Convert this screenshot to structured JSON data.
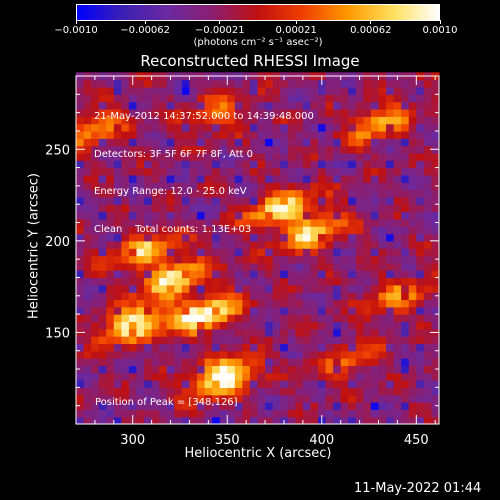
{
  "colorbar": {
    "ticks": [
      "−0.0010",
      "−0.00062",
      "−0.00021",
      "0.00021",
      "0.00062",
      "0.0010"
    ],
    "tick_values": [
      -0.001,
      -0.00062,
      -0.00021,
      0.00021,
      0.00062,
      0.001
    ],
    "unit": "(photons cm⁻² s⁻¹ asec⁻²)",
    "colors": [
      "#0000ff",
      "#3b1fb3",
      "#6a2aa0",
      "#8a1e70",
      "#c01010",
      "#f04000",
      "#ff9a00",
      "#ffe060",
      "#ffffff"
    ]
  },
  "chart_data": {
    "type": "heatmap",
    "title": "Reconstructed RHESSI Image",
    "xlabel": "Heliocentric X (arcsec)",
    "ylabel": "Heliocentric Y (arcsec)",
    "xlim": [
      270,
      462
    ],
    "ylim": [
      100,
      290
    ],
    "xticks": [
      300,
      350,
      400,
      450
    ],
    "yticks": [
      150,
      200,
      250
    ],
    "xtick_labels": [
      "300",
      "350",
      "400",
      "450"
    ],
    "ytick_labels": [
      "150",
      "200",
      "250"
    ],
    "grid_resolution_arcsec": 4,
    "bright_sources": [
      {
        "x": 348,
        "y": 126,
        "intensity": 1.0
      },
      {
        "x": 300,
        "y": 155,
        "intensity": 0.9
      },
      {
        "x": 338,
        "y": 160,
        "intensity": 0.95
      },
      {
        "x": 322,
        "y": 180,
        "intensity": 0.8
      },
      {
        "x": 378,
        "y": 218,
        "intensity": 0.8
      },
      {
        "x": 395,
        "y": 205,
        "intensity": 0.75
      },
      {
        "x": 305,
        "y": 195,
        "intensity": 0.65
      },
      {
        "x": 430,
        "y": 265,
        "intensity": 0.6
      },
      {
        "x": 280,
        "y": 262,
        "intensity": 0.55
      },
      {
        "x": 440,
        "y": 170,
        "intensity": 0.5
      },
      {
        "x": 345,
        "y": 270,
        "intensity": 0.45
      },
      {
        "x": 415,
        "y": 135,
        "intensity": 0.4
      }
    ],
    "info_lines": [
      "21-May-2012 14:37:52.000 to 14:39:48.000",
      "Detectors: 3F 5F 6F 7F 8F, Att 0",
      "Energy Range: 12.0 - 25.0 keV",
      "Clean    Total counts: 1.13E+03"
    ],
    "peak_label": "Position of Peak = [348,126]",
    "peak": [
      348,
      126
    ]
  },
  "footer": {
    "timestamp": "11-May-2022 01:44"
  }
}
